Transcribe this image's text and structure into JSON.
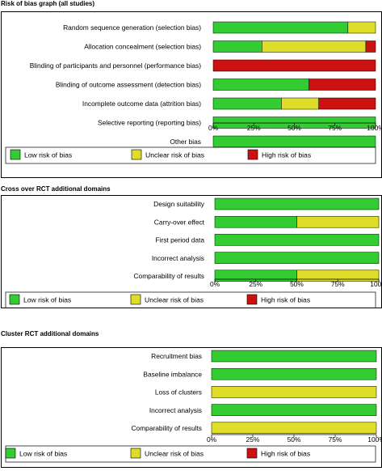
{
  "colors": {
    "low": "#33cc33",
    "unclear": "#dddd2a",
    "high": "#cc1111"
  },
  "legend": {
    "low": "Low risk of bias",
    "unclear": "Unclear risk of bias",
    "high": "High risk of bias"
  },
  "chart_data": [
    {
      "type": "bar",
      "orientation": "horizontal",
      "stacked": true,
      "title": "Risk of bias graph (all studies)",
      "xlim": [
        0,
        100
      ],
      "xticks": [
        "0%",
        "25%",
        "50%",
        "75%",
        "100%"
      ],
      "categories": [
        "Random sequence generation (selection bias)",
        "Allocation concealment (selection bias)",
        "Blinding of participants and personnel (performance bias)",
        "Blinding of outcome assessment (detection bias)",
        "Incomplete outcome data (attrition bias)",
        "Selective reporting (reporting bias)",
        "Other bias"
      ],
      "series": [
        {
          "name": "Low risk of bias",
          "values": [
            83,
            30,
            0,
            59,
            42,
            100,
            100
          ]
        },
        {
          "name": "Unclear risk of bias",
          "values": [
            17,
            64,
            0,
            0,
            23,
            0,
            0
          ]
        },
        {
          "name": "High risk of bias",
          "values": [
            0,
            6,
            100,
            41,
            35,
            0,
            0
          ]
        }
      ],
      "legend_position": "bottom"
    },
    {
      "type": "bar",
      "orientation": "horizontal",
      "stacked": true,
      "title": "Cross over RCT additional domains",
      "xlim": [
        0,
        100
      ],
      "xticks": [
        "0%",
        "25%",
        "50%",
        "75%",
        "100%"
      ],
      "categories": [
        "Design suitability",
        "Carry-over effect",
        "First period data",
        "Incorrect analysis",
        "Comparability of results"
      ],
      "series": [
        {
          "name": "Low risk of bias",
          "values": [
            100,
            50,
            100,
            100,
            50
          ]
        },
        {
          "name": "Unclear risk of bias",
          "values": [
            0,
            50,
            0,
            0,
            50
          ]
        },
        {
          "name": "High risk of bias",
          "values": [
            0,
            0,
            0,
            0,
            0
          ]
        }
      ],
      "legend_position": "bottom"
    },
    {
      "type": "bar",
      "orientation": "horizontal",
      "stacked": true,
      "title": "Cluster RCT additional domains",
      "xlim": [
        0,
        100
      ],
      "xticks": [
        "0%",
        "25%",
        "50%",
        "75%",
        "100%"
      ],
      "categories": [
        "Recruitment bias",
        "Baseline imbalance",
        "Loss of clusters",
        "Incorrect analysis",
        "Comparability of results"
      ],
      "series": [
        {
          "name": "Low risk of bias",
          "values": [
            100,
            100,
            0,
            100,
            0
          ]
        },
        {
          "name": "Unclear risk of bias",
          "values": [
            0,
            0,
            100,
            0,
            100
          ]
        },
        {
          "name": "High risk of bias",
          "values": [
            0,
            0,
            0,
            0,
            0
          ]
        }
      ],
      "legend_position": "bottom"
    }
  ]
}
